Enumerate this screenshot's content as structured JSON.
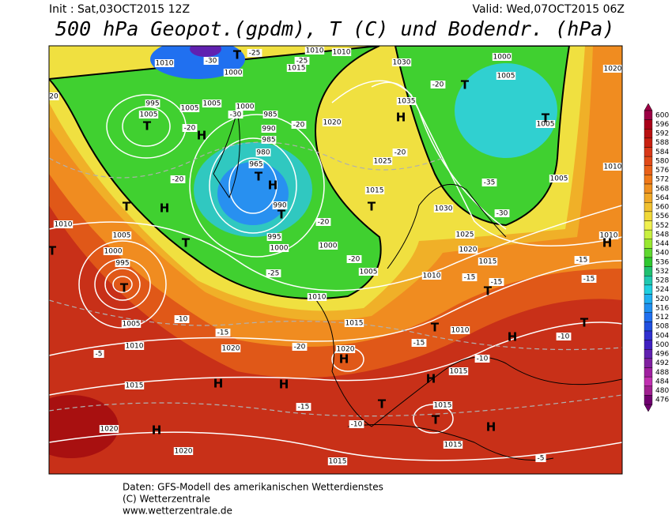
{
  "header": {
    "init": "Init : Sat,03OCT2015 12Z",
    "valid": "Valid: Wed,07OCT2015 06Z",
    "title": "500 hPa Geopot.(gpdm), T (C) und Bodendr. (hPa)"
  },
  "colorbar": {
    "levels": [
      600,
      596,
      592,
      588,
      584,
      580,
      576,
      572,
      568,
      564,
      560,
      556,
      552,
      548,
      544,
      540,
      536,
      532,
      528,
      524,
      520,
      516,
      512,
      508,
      504,
      500,
      496,
      492,
      488,
      484,
      480,
      476
    ],
    "colors": [
      "#9c0045",
      "#a80018",
      "#b81010",
      "#c82010",
      "#d83818",
      "#e04a18",
      "#e86018",
      "#f07818",
      "#f09020",
      "#f0a828",
      "#f0c030",
      "#f0d838",
      "#f0f050",
      "#c8f040",
      "#98e830",
      "#60d830",
      "#30c830",
      "#20c070",
      "#20c8b0",
      "#20d0e0",
      "#20b0f0",
      "#2090f0",
      "#2070f0",
      "#2050e0",
      "#3030d0",
      "#4020c0",
      "#6020b0",
      "#8020a0",
      "#a020a0",
      "#c030b0",
      "#a02090",
      "#700070"
    ]
  },
  "map_labels": [
    "1010",
    "1010",
    "1010",
    "1015",
    "1030",
    "1000",
    "1005",
    "1020",
    "1000",
    "995",
    "1005",
    "1005",
    "1005",
    "1000",
    "985",
    "990",
    "985",
    "980",
    "965",
    "990",
    "995",
    "1000",
    "1000",
    "1005",
    "1010",
    "1015",
    "1020",
    "1035",
    "1025",
    "1015",
    "1030",
    "1025",
    "1020",
    "1015",
    "1010",
    "1010",
    "1015",
    "1015",
    "1015",
    "1015",
    "1020",
    "1020",
    "1015",
    "1010",
    "1020",
    "1020",
    "1005",
    "1005",
    "1000",
    "995",
    "1010",
    "1005",
    "1010",
    "1010",
    "1005",
    "20",
    "-30",
    "-25",
    "-25",
    "-30",
    "-20",
    "-20",
    "-20",
    "-20",
    "-25",
    "-20",
    "-20",
    "-20",
    "-35",
    "-30",
    "-10",
    "-15",
    "-20",
    "-15",
    "-5",
    "-10",
    "-15",
    "-15",
    "-15",
    "-10",
    "-15",
    "-15",
    "-10",
    "-5",
    "T",
    "T",
    "H",
    "T",
    "H",
    "T",
    "T",
    "H",
    "T",
    "T",
    "H",
    "T",
    "T",
    "T",
    "H",
    "T",
    "T",
    "H",
    "T",
    "H",
    "H",
    "H",
    "H",
    "T",
    "T",
    "H",
    "H",
    "T"
  ],
  "footer": [
    "Daten: GFS-Modell des amerikanischen Wetterdienstes",
    "(C) Wetterzentrale",
    "www.wetterzentrale.de"
  ]
}
